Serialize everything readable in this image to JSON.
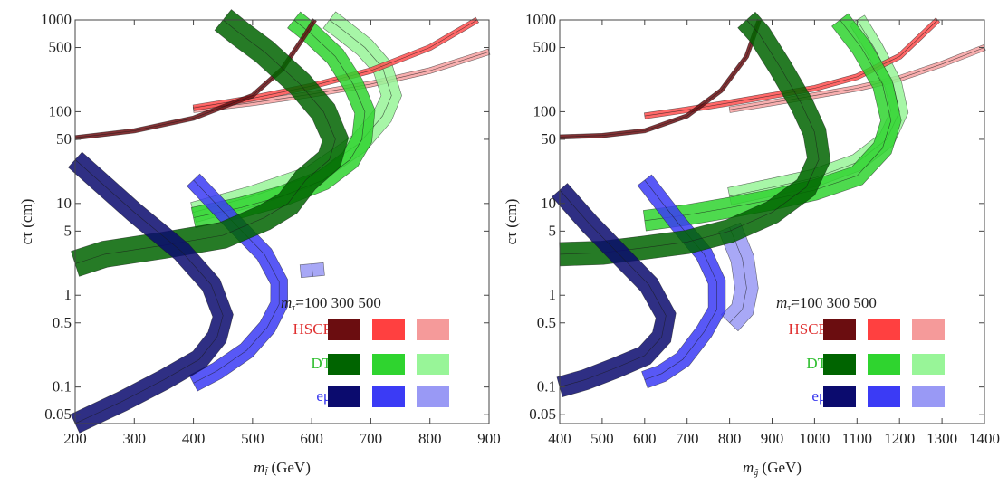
{
  "chart_data": [
    {
      "type": "line",
      "xlabel": "m_l̃ (GeV)",
      "ylabel": "cτ (cm)",
      "xlim": [
        200,
        900
      ],
      "ylim": [
        0.04,
        1000
      ],
      "yscale": "log",
      "xticks": [
        200,
        300,
        400,
        500,
        600,
        700,
        800,
        900
      ],
      "yticks": [
        0.05,
        0.1,
        0.5,
        1,
        5,
        10,
        50,
        100,
        500,
        1000
      ],
      "ytick_labels": [
        "0.05",
        "0.1",
        "0.5",
        "1",
        "5",
        "10",
        "50",
        "100",
        "500",
        "1000"
      ],
      "legend": {
        "placement": "bottom-right",
        "header": [
          "m_τ̃=100",
          "300",
          "500"
        ],
        "rows": [
          "HSCP",
          "DT",
          "eμ"
        ]
      },
      "series": [
        {
          "group": "HSCP",
          "mstau": 100,
          "color": "#6b0d10",
          "halfwidth": 0.015,
          "points": [
            [
              200,
              52
            ],
            [
              300,
              62
            ],
            [
              400,
              85
            ],
            [
              500,
              150
            ],
            [
              550,
              290
            ],
            [
              590,
              700
            ],
            [
              605,
              1000
            ]
          ]
        },
        {
          "group": "HSCP",
          "mstau": 300,
          "color": "#ff4d4d",
          "halfwidth": 0.02,
          "points": [
            [
              400,
              110
            ],
            [
              500,
              140
            ],
            [
              600,
              190
            ],
            [
              700,
              280
            ],
            [
              800,
              500
            ],
            [
              880,
              1000
            ]
          ]
        },
        {
          "group": "HSCP",
          "mstau": 500,
          "color": "#f7a1a1",
          "halfwidth": 0.02,
          "points": [
            [
              400,
              105
            ],
            [
              500,
              125
            ],
            [
              600,
              155
            ],
            [
              700,
              200
            ],
            [
              800,
              280
            ],
            [
              900,
              450
            ]
          ]
        },
        {
          "group": "DT",
          "mstau": 100,
          "color": "#006400",
          "halfwidth": 0.09,
          "points": [
            [
              200,
              2.2
            ],
            [
              250,
              2.8
            ],
            [
              350,
              3.5
            ],
            [
              450,
              4.5
            ],
            [
              520,
              7
            ],
            [
              560,
              10
            ],
            [
              590,
              18
            ],
            [
              630,
              30
            ],
            [
              640,
              50
            ],
            [
              620,
              100
            ],
            [
              580,
              200
            ],
            [
              520,
              450
            ],
            [
              480,
              700
            ],
            [
              450,
              1000
            ]
          ]
        },
        {
          "group": "DT",
          "mstau": 300,
          "color": "#2fd42f",
          "halfwidth": 0.07,
          "points": [
            [
              400,
              7
            ],
            [
              480,
              9
            ],
            [
              550,
              12
            ],
            [
              620,
              18
            ],
            [
              665,
              30
            ],
            [
              685,
              50
            ],
            [
              690,
              100
            ],
            [
              670,
              200
            ],
            [
              640,
              400
            ],
            [
              600,
              700
            ],
            [
              570,
              1000
            ]
          ]
        },
        {
          "group": "DT",
          "mstau": 500,
          "color": "#98f598",
          "halfwidth": 0.07,
          "points": [
            [
              400,
              8
            ],
            [
              500,
              12
            ],
            [
              600,
              20
            ],
            [
              680,
              45
            ],
            [
              720,
              90
            ],
            [
              735,
              150
            ],
            [
              720,
              300
            ],
            [
              690,
              500
            ],
            [
              650,
              800
            ],
            [
              630,
              1000
            ]
          ]
        },
        {
          "group": "eμ",
          "mstau": 100,
          "color": "#0b0b6e",
          "halfwidth": 0.07,
          "points": [
            [
              200,
              30
            ],
            [
              300,
              8
            ],
            [
              380,
              3
            ],
            [
              430,
              1.3
            ],
            [
              450,
              0.6
            ],
            [
              440,
              0.35
            ],
            [
              410,
              0.2
            ],
            [
              350,
              0.12
            ],
            [
              280,
              0.07
            ],
            [
              200,
              0.04
            ]
          ]
        },
        {
          "group": "eμ",
          "mstau": 300,
          "color": "#3b3bf5",
          "halfwidth": 0.06,
          "points": [
            [
              400,
              18
            ],
            [
              470,
              6
            ],
            [
              520,
              2.8
            ],
            [
              545,
              1.4
            ],
            [
              545,
              0.8
            ],
            [
              525,
              0.45
            ],
            [
              490,
              0.25
            ],
            [
              440,
              0.15
            ],
            [
              400,
              0.11
            ]
          ]
        },
        {
          "group": "eμ",
          "mstau": 500,
          "color": "#9999f5",
          "halfwidth": 0.08,
          "points": [
            [
              600,
              2.2
            ],
            [
              602,
              1.6
            ]
          ]
        }
      ]
    },
    {
      "type": "line",
      "xlabel": "m_g̃ (GeV)",
      "ylabel": "cτ (cm)",
      "xlim": [
        400,
        1400
      ],
      "ylim": [
        0.04,
        1000
      ],
      "yscale": "log",
      "xticks": [
        400,
        500,
        600,
        700,
        800,
        900,
        1000,
        1100,
        1200,
        1300,
        1400
      ],
      "yticks": [
        0.05,
        0.1,
        0.5,
        1,
        5,
        10,
        50,
        100,
        500,
        1000
      ],
      "ytick_labels": [
        "0.05",
        "0.1",
        "0.5",
        "1",
        "5",
        "10",
        "50",
        "100",
        "500",
        "1000"
      ],
      "legend": {
        "placement": "bottom-right",
        "header": [
          "m_τ̃=100",
          "300",
          "500"
        ],
        "rows": [
          "HSCP",
          "DT",
          "eμ"
        ]
      },
      "series": [
        {
          "group": "HSCP",
          "mstau": 100,
          "color": "#6b0d10",
          "halfwidth": 0.015,
          "points": [
            [
              400,
              53
            ],
            [
              500,
              55
            ],
            [
              600,
              62
            ],
            [
              700,
              90
            ],
            [
              780,
              170
            ],
            [
              840,
              400
            ],
            [
              870,
              1000
            ]
          ]
        },
        {
          "group": "HSCP",
          "mstau": 300,
          "color": "#ff4d4d",
          "halfwidth": 0.02,
          "points": [
            [
              600,
              90
            ],
            [
              700,
              105
            ],
            [
              800,
              125
            ],
            [
              900,
              150
            ],
            [
              1000,
              180
            ],
            [
              1100,
              240
            ],
            [
              1200,
              400
            ],
            [
              1290,
              1000
            ]
          ]
        },
        {
          "group": "HSCP",
          "mstau": 500,
          "color": "#f7a1a1",
          "halfwidth": 0.02,
          "points": [
            [
              800,
              105
            ],
            [
              900,
              125
            ],
            [
              1000,
              150
            ],
            [
              1100,
              180
            ],
            [
              1200,
              230
            ],
            [
              1300,
              330
            ],
            [
              1400,
              500
            ]
          ]
        },
        {
          "group": "DT",
          "mstau": 100,
          "color": "#006400",
          "halfwidth": 0.08,
          "points": [
            [
              400,
              2.8
            ],
            [
              500,
              2.9
            ],
            [
              600,
              3.3
            ],
            [
              700,
              3.8
            ],
            [
              800,
              5
            ],
            [
              900,
              8
            ],
            [
              980,
              15
            ],
            [
              1010,
              30
            ],
            [
              1000,
              60
            ],
            [
              970,
              120
            ],
            [
              920,
              300
            ],
            [
              870,
              700
            ],
            [
              840,
              1000
            ]
          ]
        },
        {
          "group": "DT",
          "mstau": 300,
          "color": "#2fd42f",
          "halfwidth": 0.07,
          "points": [
            [
              600,
              6.5
            ],
            [
              700,
              7.5
            ],
            [
              800,
              9
            ],
            [
              900,
              11
            ],
            [
              1000,
              14
            ],
            [
              1100,
              20
            ],
            [
              1160,
              40
            ],
            [
              1180,
              80
            ],
            [
              1160,
              200
            ],
            [
              1110,
              500
            ],
            [
              1060,
              1000
            ]
          ]
        },
        {
          "group": "DT",
          "mstau": 500,
          "color": "#98f598",
          "halfwidth": 0.06,
          "points": [
            [
              800,
              12
            ],
            [
              900,
              15
            ],
            [
              1000,
              19
            ],
            [
              1100,
              28
            ],
            [
              1170,
              50
            ],
            [
              1200,
              100
            ],
            [
              1185,
              200
            ],
            [
              1140,
              500
            ],
            [
              1100,
              1000
            ]
          ]
        },
        {
          "group": "eμ",
          "mstau": 100,
          "color": "#0b0b6e",
          "halfwidth": 0.07,
          "points": [
            [
              400,
              14
            ],
            [
              470,
              6
            ],
            [
              550,
              2.5
            ],
            [
              610,
              1.3
            ],
            [
              650,
              0.6
            ],
            [
              640,
              0.35
            ],
            [
              600,
              0.22
            ],
            [
              530,
              0.16
            ],
            [
              460,
              0.12
            ],
            [
              400,
              0.1
            ]
          ]
        },
        {
          "group": "eμ",
          "mstau": 300,
          "color": "#3b3bf5",
          "halfwidth": 0.06,
          "points": [
            [
              600,
              18
            ],
            [
              680,
              6
            ],
            [
              740,
              2.8
            ],
            [
              770,
              1.4
            ],
            [
              770,
              0.7
            ],
            [
              740,
              0.4
            ],
            [
              690,
              0.2
            ],
            [
              640,
              0.14
            ],
            [
              600,
              0.12
            ]
          ]
        },
        {
          "group": "eμ",
          "mstau": 500,
          "color": "#9999f5",
          "halfwidth": 0.08,
          "points": [
            [
              800,
              5.5
            ],
            [
              830,
              2.5
            ],
            [
              840,
              1.2
            ],
            [
              830,
              0.7
            ],
            [
              800,
              0.5
            ]
          ]
        }
      ]
    }
  ]
}
